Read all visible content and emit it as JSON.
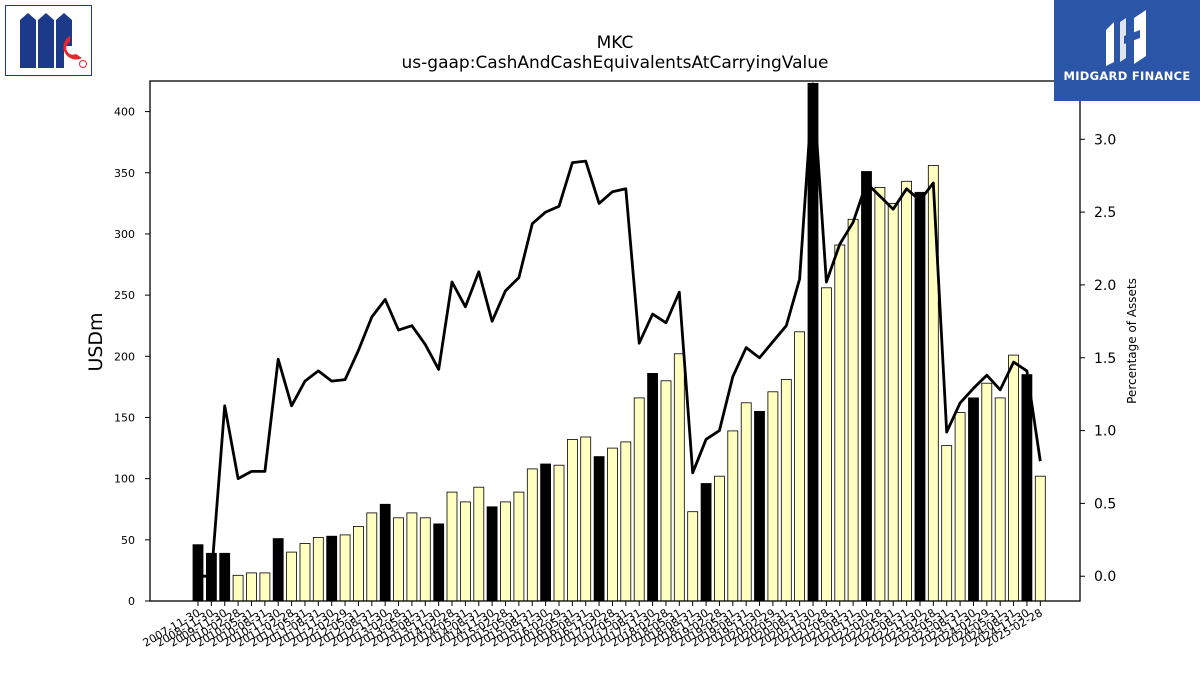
{
  "chart_data": {
    "type": "bar+line",
    "title": "MKC",
    "subtitle": "us-gaap:CashAndCashEquivalentsAtCarryingValue",
    "ylabel": "USDm",
    "y2label": "Percentage of Assets",
    "ylim": [
      0,
      425
    ],
    "y2lim": [
      -0.17,
      3.4
    ],
    "yticks": [
      0,
      50,
      100,
      150,
      200,
      250,
      300,
      350,
      400
    ],
    "y2ticks": [
      "0.0",
      "0.5",
      "1.0",
      "1.5",
      "2.0",
      "2.5",
      "3.0"
    ],
    "categories": [
      "2007-11-30",
      "2008-11-30",
      "2009-11-30",
      "2010-02-28",
      "2010-05-31",
      "2010-08-31",
      "2010-11-30",
      "2011-02-28",
      "2011-05-31",
      "2011-08-31",
      "2011-11-30",
      "2012-02-29",
      "2012-05-31",
      "2012-08-31",
      "2012-11-30",
      "2013-02-28",
      "2013-05-31",
      "2013-08-31",
      "2013-11-30",
      "2014-02-28",
      "2014-05-31",
      "2014-08-31",
      "2014-11-30",
      "2015-02-28",
      "2015-05-31",
      "2015-08-31",
      "2015-11-30",
      "2016-02-29",
      "2016-05-31",
      "2016-08-31",
      "2016-11-30",
      "2017-02-28",
      "2017-05-31",
      "2017-08-31",
      "2017-11-30",
      "2018-02-28",
      "2018-05-31",
      "2018-08-31",
      "2018-11-30",
      "2019-02-28",
      "2019-05-31",
      "2019-08-31",
      "2019-11-30",
      "2020-02-29",
      "2020-05-31",
      "2020-08-31",
      "2020-11-30",
      "2021-02-28",
      "2021-05-31",
      "2021-08-31",
      "2021-11-30",
      "2022-02-28",
      "2022-05-31",
      "2022-08-31",
      "2022-11-30",
      "2023-02-28",
      "2023-05-31",
      "2023-08-31",
      "2023-11-30",
      "2024-02-29",
      "2024-05-31",
      "2024-08-31",
      "2024-11-30",
      "2025-02-28"
    ],
    "tick_labels_visible": [
      "2007-11-30",
      "2008-11-30",
      "2009-11-30",
      "2010-02-28",
      "2010-05-31",
      "2010-08-31",
      "2010-11-30",
      "2011-02-28",
      "2011-05-31",
      "2011-08-31",
      "2011-11-30",
      "2012-02-29",
      "2012-05-31",
      "2012-08-31",
      "2012-11-30",
      "2013-02-28",
      "2013-05-31",
      "2013-08-31",
      "2013-11-30",
      "2014-02-28",
      "2014-05-31",
      "2014-08-31",
      "2014-11-30",
      "2015-02-28",
      "2015-05-31",
      "2015-08-31",
      "2015-11-30",
      "2016-02-29",
      "2016-05-31",
      "2016-08-31",
      "2016-11-30",
      "2017-02-28",
      "2017-05-31",
      "2017-08-31",
      "2017-11-30",
      "2018-02-28",
      "2018-05-31",
      "2018-08-31",
      "2018-11-30",
      "2019-02-28",
      "2019-05-31",
      "2019-08-31",
      "2019-11-30",
      "2020-02-29",
      "2020-05-31",
      "2020-08-31",
      "2020-11-30",
      "2021-02-28",
      "2021-05-31",
      "2021-08-31",
      "2021-11-30",
      "2022-02-28",
      "2022-05-31",
      "2022-08-31",
      "2022-11-30",
      "2023-02-28",
      "2023-05-31",
      "2023-08-31",
      "2023-11-30",
      "2024-02-29",
      "2024-05-31",
      "2024-08-31",
      "2024-11-30",
      "2025-02-28"
    ],
    "series": [
      {
        "type": "bar",
        "values": [
          46,
          39,
          39,
          21,
          23,
          23,
          51,
          40,
          47,
          52,
          53,
          54,
          61,
          72,
          79,
          68,
          72,
          68,
          63,
          89,
          81,
          93,
          77,
          81,
          89,
          108,
          112,
          111,
          132,
          134,
          118,
          125,
          130,
          166,
          186,
          180,
          202,
          73,
          96,
          102,
          139,
          162,
          155,
          171,
          181,
          220,
          423,
          256,
          291,
          312,
          351,
          338,
          325,
          343,
          334,
          356,
          127,
          154,
          166,
          178,
          166,
          201,
          185,
          102
        ],
        "highlight": [
          true,
          true,
          true,
          false,
          false,
          false,
          true,
          false,
          false,
          false,
          true,
          false,
          false,
          false,
          true,
          false,
          false,
          false,
          true,
          false,
          false,
          false,
          true,
          false,
          false,
          false,
          true,
          false,
          false,
          false,
          true,
          false,
          false,
          false,
          true,
          false,
          false,
          false,
          true,
          false,
          false,
          false,
          true,
          false,
          false,
          false,
          true,
          false,
          false,
          false,
          true,
          false,
          false,
          false,
          true,
          false,
          false,
          false,
          true,
          false,
          false,
          false,
          true,
          false
        ]
      },
      {
        "type": "line",
        "axis": "right",
        "values": [
          0.0,
          0.0,
          1.17,
          0.67,
          0.72,
          0.72,
          1.49,
          1.17,
          1.34,
          1.41,
          1.34,
          1.35,
          1.55,
          1.78,
          1.9,
          1.69,
          1.72,
          1.59,
          1.42,
          2.02,
          1.85,
          2.09,
          1.75,
          1.96,
          2.05,
          2.42,
          2.5,
          2.54,
          2.84,
          2.85,
          2.56,
          2.64,
          2.66,
          1.6,
          1.8,
          1.74,
          1.95,
          0.71,
          0.94,
          1.0,
          1.37,
          1.57,
          1.5,
          1.61,
          1.72,
          2.04,
          3.38,
          2.02,
          2.28,
          2.43,
          2.7,
          2.61,
          2.52,
          2.66,
          2.58,
          2.7,
          0.99,
          1.19,
          1.29,
          1.38,
          1.28,
          1.47,
          1.41,
          0.79
        ]
      }
    ],
    "colors": {
      "bar_fill": "#ffffc0",
      "bar_highlight": "#000000",
      "line": "#000000"
    },
    "legend": "none",
    "grid": false
  },
  "logos": {
    "left": {
      "name": "mccormick-logo",
      "text": "Mc"
    },
    "right": {
      "name": "midgard-finance-logo",
      "text": "MIDGARD FINANCE",
      "bg": "#2b56a8"
    }
  }
}
